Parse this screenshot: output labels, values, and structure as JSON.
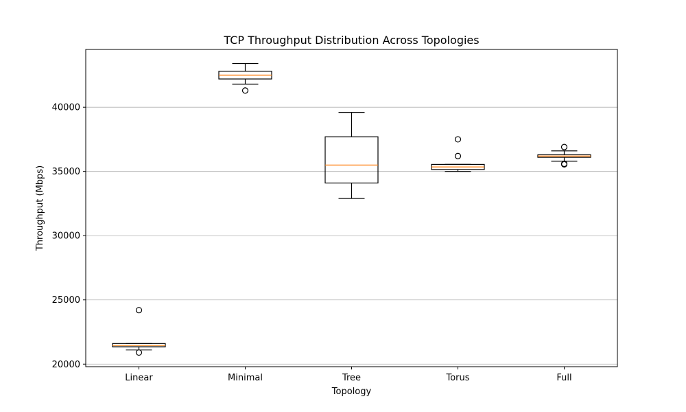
{
  "chart_data": {
    "type": "box",
    "title": "TCP Throughput Distribution Across Topologies",
    "xlabel": "Topology",
    "ylabel": "Throughput (Mbps)",
    "ylim": [
      19800,
      44500
    ],
    "yticks": [
      20000,
      25000,
      30000,
      35000,
      40000
    ],
    "grid": "y-major",
    "categories": [
      "Linear",
      "Minimal",
      "Tree",
      "Torus",
      "Full"
    ],
    "boxes": [
      {
        "category": "Linear",
        "whisker_low": 21100,
        "q1": 21350,
        "median": 21450,
        "q3": 21600,
        "whisker_high": 21600,
        "outliers": [
          24200,
          20900
        ]
      },
      {
        "category": "Minimal",
        "whisker_low": 41800,
        "q1": 42200,
        "median": 42500,
        "q3": 42800,
        "whisker_high": 43400,
        "outliers": [
          41300
        ]
      },
      {
        "category": "Tree",
        "whisker_low": 32900,
        "q1": 34100,
        "median": 35500,
        "q3": 37700,
        "whisker_high": 39600,
        "outliers": []
      },
      {
        "category": "Torus",
        "whisker_low": 35000,
        "q1": 35150,
        "median": 35350,
        "q3": 35550,
        "whisker_high": 35550,
        "outliers": [
          37500,
          36200
        ]
      },
      {
        "category": "Full",
        "whisker_low": 35800,
        "q1": 36100,
        "median": 36200,
        "q3": 36300,
        "whisker_high": 36600,
        "outliers": [
          36900,
          35600,
          35550
        ]
      }
    ],
    "colors": {
      "box": "#000000",
      "median": "#ff7f0e",
      "grid": "#b0b0b0",
      "outlier": "#000000"
    }
  }
}
